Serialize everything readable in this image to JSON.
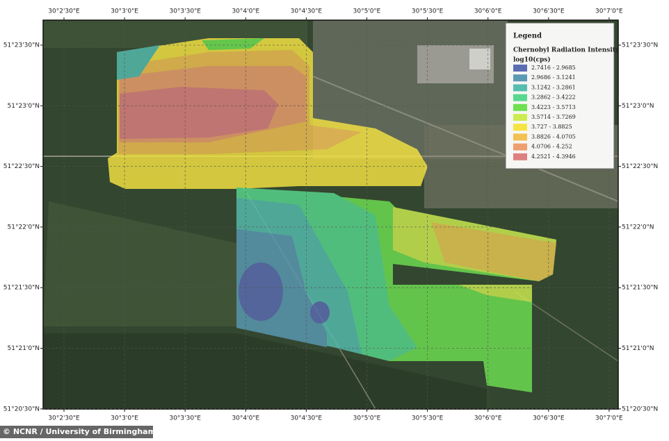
{
  "map": {
    "lon_labels": [
      "30°2'30\"E",
      "30°3'0\"E",
      "30°3'30\"E",
      "30°4'0\"E",
      "30°4'30\"E",
      "30°5'0\"E",
      "30°5'30\"E",
      "30°6'0\"E",
      "30°6'30\"E",
      "30°7'0\"E"
    ],
    "lat_labels": [
      "51°23'30\"N",
      "51°23'0\"N",
      "51°22'30\"N",
      "51°22'0\"N",
      "51°21'30\"N",
      "51°21'0\"N",
      "51°20'30\"N"
    ],
    "legend": {
      "title": "Legend",
      "subtitle": "Chernobyl Radiation Intensity",
      "unit": "log10(cps)",
      "entries": [
        {
          "label": "2.7416 - 2.9685",
          "color": "#5b6db2"
        },
        {
          "label": "2.9686 - 3.1241",
          "color": "#5b9ab4"
        },
        {
          "label": "3.1242 - 3.2861",
          "color": "#56bdb0"
        },
        {
          "label": "3.2862 - 3.4222",
          "color": "#58d88e"
        },
        {
          "label": "3.4223 - 3.5713",
          "color": "#6ee052"
        },
        {
          "label": "3.5714 - 3.7269",
          "color": "#cdec52"
        },
        {
          "label": "3.727 - 3.8825",
          "color": "#f6e442"
        },
        {
          "label": "3.8826 - 4.0705",
          "color": "#f3c052"
        },
        {
          "label": "4.0706 - 4.252",
          "color": "#ee9f6e"
        },
        {
          "label": "4.2521 - 4.3946",
          "color": "#de8080"
        }
      ]
    },
    "credit": "© NCNR / University of Birmingham"
  }
}
